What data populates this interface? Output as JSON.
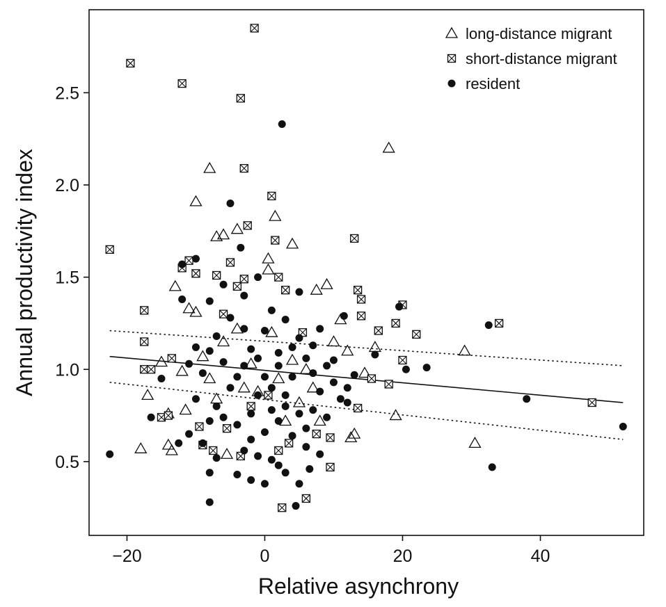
{
  "chart_data": {
    "type": "scatter",
    "title": "",
    "xlabel": "Relative asynchrony",
    "ylabel": "Annual productivity index",
    "xlim": [
      -25.5,
      55
    ],
    "ylim": [
      0.1,
      2.95
    ],
    "x_ticks": [
      -20,
      0,
      20,
      40
    ],
    "x_tick_labels": [
      "−20",
      "0",
      "20",
      "40"
    ],
    "y_ticks": [
      0.5,
      1.0,
      1.5,
      2.0,
      2.5
    ],
    "y_tick_labels": [
      "0.5",
      "1.0",
      "1.5",
      "2.0",
      "2.5"
    ],
    "grid": false,
    "legend_position": "top-right",
    "series": [
      {
        "name": "long-distance migrant",
        "marker": "open-triangle",
        "color": "#111111",
        "points": [
          [
            -8,
            2.09
          ],
          [
            -10,
            1.91
          ],
          [
            -7,
            1.72
          ],
          [
            -6,
            1.73
          ],
          [
            -4,
            1.76
          ],
          [
            1.5,
            1.83
          ],
          [
            4,
            1.68
          ],
          [
            0.5,
            1.6
          ],
          [
            18,
            2.2
          ],
          [
            9,
            1.46
          ],
          [
            7.5,
            1.43
          ],
          [
            -13,
            1.45
          ],
          [
            -10,
            1.31
          ],
          [
            -11,
            1.33
          ],
          [
            11,
            1.27
          ],
          [
            16,
            1.12
          ],
          [
            29,
            1.1
          ],
          [
            12,
            1.1
          ],
          [
            14.5,
            0.98
          ],
          [
            -12,
            0.99
          ],
          [
            -15,
            1.04
          ],
          [
            -17,
            0.86
          ],
          [
            -14,
            0.76
          ],
          [
            -11.5,
            0.78
          ],
          [
            -18,
            0.57
          ],
          [
            -14,
            0.59
          ],
          [
            -13.5,
            0.56
          ],
          [
            19,
            0.75
          ],
          [
            13,
            0.65
          ],
          [
            12.5,
            0.63
          ],
          [
            30.5,
            0.6
          ],
          [
            -5.5,
            0.54
          ],
          [
            -3,
            0.9
          ],
          [
            2,
            0.95
          ],
          [
            5,
            0.82
          ],
          [
            -7,
            0.84
          ],
          [
            8,
            0.72
          ],
          [
            -2,
            1.03
          ],
          [
            0.5,
            1.54
          ],
          [
            -9,
            1.07
          ],
          [
            6,
            1.0
          ],
          [
            10,
            1.15
          ],
          [
            -4,
            1.22
          ],
          [
            3,
            0.72
          ],
          [
            -1,
            0.88
          ],
          [
            7,
            0.9
          ],
          [
            -6,
            1.15
          ],
          [
            1,
            1.2
          ],
          [
            4,
            1.05
          ],
          [
            -8,
            0.95
          ]
        ]
      },
      {
        "name": "short-distance migrant",
        "marker": "boxed-cross",
        "color": "#111111",
        "points": [
          [
            -1.5,
            2.85
          ],
          [
            -19.5,
            2.66
          ],
          [
            -12,
            2.55
          ],
          [
            -3.5,
            2.47
          ],
          [
            -3,
            2.09
          ],
          [
            1,
            1.94
          ],
          [
            -2.5,
            1.78
          ],
          [
            1.5,
            1.7
          ],
          [
            13,
            1.71
          ],
          [
            -22.5,
            1.65
          ],
          [
            -5,
            1.58
          ],
          [
            -11,
            1.59
          ],
          [
            -12,
            1.55
          ],
          [
            -10,
            1.52
          ],
          [
            2,
            1.5
          ],
          [
            -3,
            1.49
          ],
          [
            3,
            1.43
          ],
          [
            -7,
            1.51
          ],
          [
            13.5,
            1.43
          ],
          [
            14,
            1.38
          ],
          [
            20,
            1.35
          ],
          [
            -17.5,
            1.32
          ],
          [
            14,
            1.29
          ],
          [
            16.5,
            1.21
          ],
          [
            19,
            1.25
          ],
          [
            22,
            1.19
          ],
          [
            34,
            1.25
          ],
          [
            -17.5,
            1.15
          ],
          [
            20,
            1.05
          ],
          [
            -17.5,
            1.0
          ],
          [
            -16.5,
            1.0
          ],
          [
            -13.5,
            1.06
          ],
          [
            -15,
            0.74
          ],
          [
            -14,
            0.75
          ],
          [
            15.5,
            0.95
          ],
          [
            18,
            0.92
          ],
          [
            -9.5,
            0.69
          ],
          [
            -5.5,
            0.68
          ],
          [
            -9,
            0.59
          ],
          [
            -7.5,
            0.56
          ],
          [
            -3.5,
            0.53
          ],
          [
            2,
            0.56
          ],
          [
            3.5,
            0.6
          ],
          [
            9.5,
            0.63
          ],
          [
            7.5,
            0.65
          ],
          [
            13.5,
            0.79
          ],
          [
            9.5,
            0.47
          ],
          [
            6,
            0.3
          ],
          [
            2.5,
            0.25
          ],
          [
            47.5,
            0.82
          ],
          [
            -2,
            0.8
          ],
          [
            0.5,
            0.86
          ],
          [
            5.5,
            1.2
          ],
          [
            -6,
            1.3
          ],
          [
            -4,
            1.45
          ]
        ]
      },
      {
        "name": "resident",
        "marker": "filled-circle",
        "color": "#111111",
        "points": [
          [
            2.5,
            2.33
          ],
          [
            -5,
            1.9
          ],
          [
            -3.5,
            1.66
          ],
          [
            -12,
            1.57
          ],
          [
            -10,
            1.6
          ],
          [
            -12,
            1.38
          ],
          [
            -8,
            1.37
          ],
          [
            -3,
            1.4
          ],
          [
            19.5,
            1.34
          ],
          [
            32.5,
            1.24
          ],
          [
            11.5,
            1.29
          ],
          [
            -15,
            0.95
          ],
          [
            -16.5,
            0.74
          ],
          [
            -22.5,
            0.54
          ],
          [
            -8,
            0.28
          ],
          [
            -8,
            0.44
          ],
          [
            -4,
            0.43
          ],
          [
            -2,
            0.4
          ],
          [
            0,
            0.38
          ],
          [
            3,
            0.44
          ],
          [
            4.5,
            0.26
          ],
          [
            5,
            0.38
          ],
          [
            6.5,
            0.46
          ],
          [
            -11,
            0.65
          ],
          [
            -12.5,
            0.6
          ],
          [
            23.5,
            1.01
          ],
          [
            20.5,
            1.0
          ],
          [
            16,
            1.08
          ],
          [
            38,
            0.84
          ],
          [
            52,
            0.69
          ],
          [
            33,
            0.47
          ],
          [
            -1,
            1.5
          ],
          [
            0,
            1.21
          ],
          [
            -2,
            1.11
          ],
          [
            2,
            1.09
          ],
          [
            4,
            0.96
          ],
          [
            1,
            0.9
          ],
          [
            -1,
            0.86
          ],
          [
            -6,
            1.04
          ],
          [
            -4,
            0.96
          ],
          [
            -3,
            1.02
          ],
          [
            -5,
            0.9
          ],
          [
            3,
            0.8
          ],
          [
            5,
            0.76
          ],
          [
            6,
            0.68
          ],
          [
            7,
            0.98
          ],
          [
            8,
            0.88
          ],
          [
            9,
            1.02
          ],
          [
            10,
            0.93
          ],
          [
            11,
            0.84
          ],
          [
            12,
            0.9
          ],
          [
            13,
            0.97
          ],
          [
            -7,
            0.8
          ],
          [
            -8,
            0.72
          ],
          [
            -9,
            0.98
          ],
          [
            -10,
            1.12
          ],
          [
            -11,
            1.03
          ],
          [
            -9,
            0.6
          ],
          [
            -7,
            0.52
          ],
          [
            -2,
            0.62
          ],
          [
            0,
            0.66
          ],
          [
            2,
            0.72
          ],
          [
            4,
            0.64
          ],
          [
            -1,
            0.53
          ],
          [
            1,
            0.51
          ],
          [
            6,
            0.58
          ],
          [
            8,
            0.54
          ],
          [
            -3,
            1.22
          ],
          [
            1,
            1.32
          ],
          [
            3,
            1.27
          ],
          [
            5,
            1.17
          ],
          [
            7,
            1.13
          ],
          [
            -5,
            1.28
          ],
          [
            -7,
            1.18
          ],
          [
            -6,
            0.74
          ],
          [
            -4,
            0.7
          ],
          [
            2,
            1.02
          ],
          [
            0,
            0.96
          ],
          [
            -1,
            1.06
          ],
          [
            4,
            1.12
          ],
          [
            6,
            1.06
          ],
          [
            -2,
            0.76
          ],
          [
            1,
            0.78
          ],
          [
            3,
            0.86
          ],
          [
            -8,
            1.1
          ],
          [
            10,
            1.05
          ],
          [
            12,
            0.82
          ],
          [
            5,
            1.42
          ],
          [
            -6,
            1.46
          ],
          [
            2,
            0.48
          ],
          [
            -3,
            0.56
          ],
          [
            7,
            0.78
          ],
          [
            9,
            0.74
          ],
          [
            -10,
            0.84
          ],
          [
            8,
            1.22
          ]
        ]
      }
    ],
    "lines": [
      {
        "name": "regression fit",
        "style": "solid",
        "points": [
          [
            -22.5,
            1.07
          ],
          [
            52,
            0.82
          ]
        ]
      },
      {
        "name": "upper confidence band",
        "style": "dotted",
        "points": [
          [
            -22.5,
            1.21
          ],
          [
            52,
            1.02
          ]
        ]
      },
      {
        "name": "lower confidence band",
        "style": "dotted",
        "points": [
          [
            -22.5,
            0.93
          ],
          [
            52,
            0.62
          ]
        ]
      }
    ]
  }
}
